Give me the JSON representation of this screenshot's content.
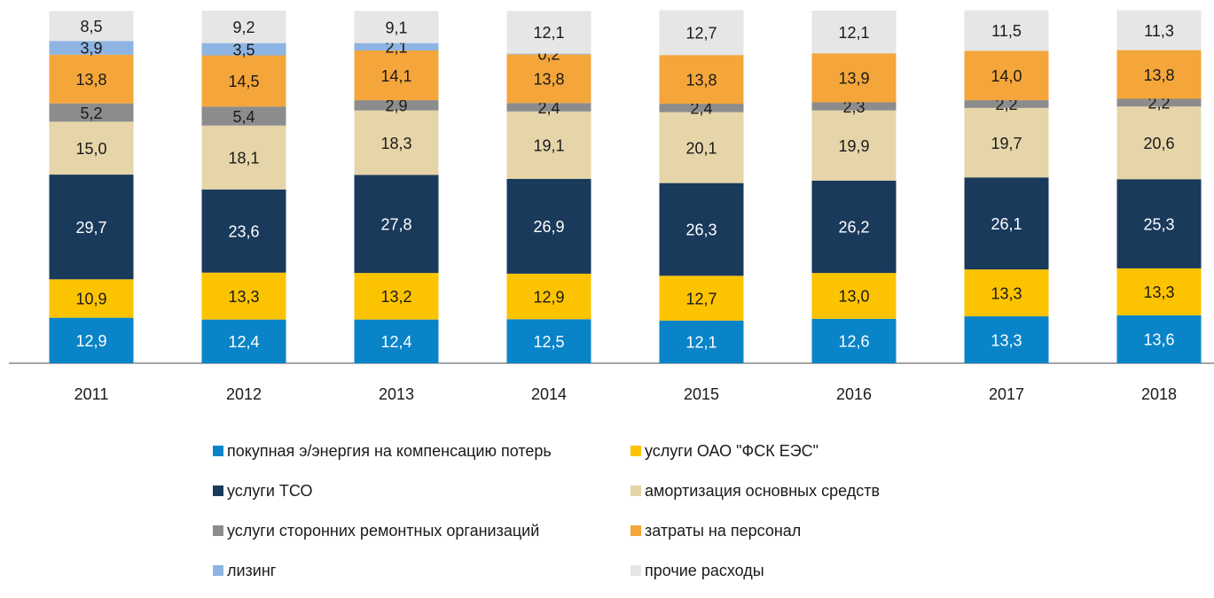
{
  "chart_data": {
    "type": "stacked_bar",
    "categories": [
      "2011",
      "2012",
      "2013",
      "2014",
      "2015",
      "2016",
      "2017",
      "2018"
    ],
    "ylim": [
      0,
      100
    ],
    "series": [
      {
        "name": "покупная э/энергия на компенсацию потерь",
        "color": "#0a84c8",
        "label_color": "#ffffff",
        "values": [
          12.9,
          12.4,
          12.4,
          12.5,
          12.1,
          12.6,
          13.3,
          13.6
        ],
        "value_labels": [
          "12,9",
          "12,4",
          "12,4",
          "12,5",
          "12,1",
          "12,6",
          "13,3",
          "13,6"
        ]
      },
      {
        "name": "услуги ОАО \"ФСК ЕЭС\"",
        "color": "#fcc300",
        "label_color": "#1a1a1a",
        "values": [
          10.9,
          13.3,
          13.2,
          12.9,
          12.7,
          13.0,
          13.3,
          13.3
        ],
        "value_labels": [
          "10,9",
          "13,3",
          "13,2",
          "12,9",
          "12,7",
          "13,0",
          "13,3",
          "13,3"
        ]
      },
      {
        "name": "услуги ТСО",
        "color": "#1a3a5c",
        "label_color": "#ffffff",
        "values": [
          29.7,
          23.6,
          27.8,
          26.9,
          26.3,
          26.2,
          26.1,
          25.3
        ],
        "value_labels": [
          "29,7",
          "23,6",
          "27,8",
          "26,9",
          "26,3",
          "26,2",
          "26,1",
          "25,3"
        ]
      },
      {
        "name": "амортизация основных средств",
        "color": "#e6d5a8",
        "label_color": "#1a1a1a",
        "values": [
          15.0,
          18.1,
          18.3,
          19.1,
          20.1,
          19.9,
          19.7,
          20.6
        ],
        "value_labels": [
          "15,0",
          "18,1",
          "18,3",
          "19,1",
          "20,1",
          "19,9",
          "19,7",
          "20,6"
        ]
      },
      {
        "name": "услуги сторонних ремонтных организаций",
        "color": "#8c8c8c",
        "label_color": "#1a1a1a",
        "values": [
          5.2,
          5.4,
          2.9,
          2.4,
          2.4,
          2.3,
          2.2,
          2.2
        ],
        "value_labels": [
          "5,2",
          "5,4",
          "2,9",
          "2,4",
          "2,4",
          "2,3",
          "2,2",
          "2,2"
        ]
      },
      {
        "name": "затраты на персонал",
        "color": "#f4a63a",
        "label_color": "#1a1a1a",
        "values": [
          13.8,
          14.5,
          14.1,
          13.8,
          13.8,
          13.9,
          14.0,
          13.8
        ],
        "value_labels": [
          "13,8",
          "14,5",
          "14,1",
          "13,8",
          "13,8",
          "13,9",
          "14,0",
          "13,8"
        ]
      },
      {
        "name": "лизинг",
        "color": "#8db4e2",
        "label_color": "#1a1a1a",
        "values": [
          3.9,
          3.5,
          2.1,
          0.2,
          null,
          null,
          null,
          null
        ],
        "value_labels": [
          "3,9",
          "3,5",
          "2,1",
          "0,2",
          null,
          null,
          null,
          null
        ]
      },
      {
        "name": "прочие расходы",
        "color": "#e6e6e6",
        "label_color": "#1a1a1a",
        "values": [
          8.5,
          9.2,
          9.1,
          12.1,
          12.7,
          12.1,
          11.5,
          11.3
        ],
        "value_labels": [
          "8,5",
          "9,2",
          "9,1",
          "12,1",
          "12,7",
          "12,1",
          "11,5",
          "11,3"
        ]
      }
    ]
  }
}
